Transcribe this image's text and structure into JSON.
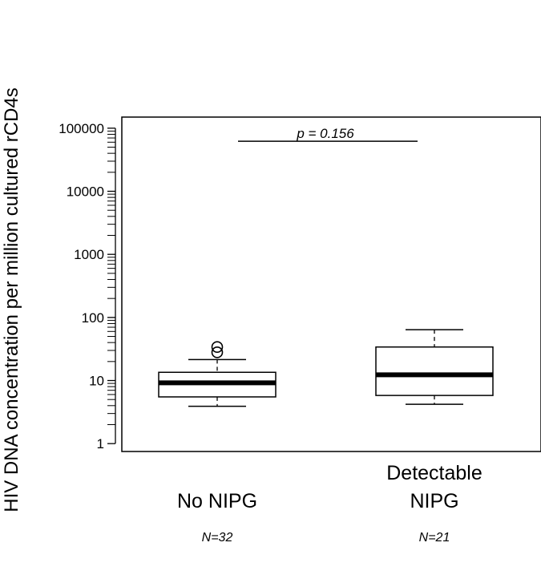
{
  "chart_data": {
    "type": "box",
    "ylabel": "HIV DNA concentration per million cultured rCD4s",
    "yscale": "log",
    "ylim": [
      0.75,
      150000
    ],
    "y_ticks": [
      {
        "value": 1,
        "label": "1"
      },
      {
        "value": 10,
        "label": "10"
      },
      {
        "value": 100,
        "label": "100"
      },
      {
        "value": 1000,
        "label": "1000"
      },
      {
        "value": 10000,
        "label": "10000"
      },
      {
        "value": 100000,
        "label": "100000"
      }
    ],
    "groups": [
      {
        "category_lines": [
          "No NIPG"
        ],
        "n_label": "N=32",
        "whisker_low": 3.9,
        "q1": 5.5,
        "median": 9.2,
        "q3": 13.5,
        "whisker_high": 21.5,
        "outliers": [
          28,
          34
        ]
      },
      {
        "category_lines": [
          "Detectable",
          "NIPG"
        ],
        "n_label": "N=21",
        "whisker_low": 4.2,
        "q1": 5.8,
        "median": 12.3,
        "q3": 34,
        "whisker_high": 64,
        "outliers": []
      }
    ],
    "annotation": {
      "text": "p = 0.156",
      "y": 62000
    },
    "colors": {
      "box_fill": "#ffffff",
      "line": "#000000"
    }
  }
}
